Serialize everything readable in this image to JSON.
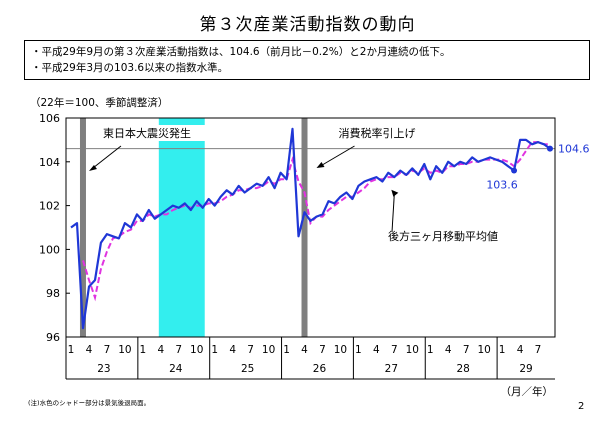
{
  "title": "第３次産業活動指数の動向",
  "notes": [
    "・平成29年9月の第３次産業活動指数は、104.6（前月比－0.2%）と2か月連続の低下。",
    "・平成29年3月の103.6以来の指数水準。"
  ],
  "unit_label": "（22年＝100、季節調整済）",
  "footnote": "(注)水色のシャドー部分は景気後退局面。",
  "page_number": "2",
  "chart_data": {
    "type": "line",
    "ylim": [
      96,
      106
    ],
    "yticks": [
      96,
      98,
      100,
      102,
      104,
      106
    ],
    "x_start": "2011-01",
    "month_tick_labels": [
      "1",
      "4",
      "7",
      "10"
    ],
    "year_labels": [
      "23",
      "24",
      "25",
      "26",
      "27",
      "28",
      "29"
    ],
    "x_unit_label": "（月／年）",
    "reference_line": 104.6,
    "colors": {
      "series": "#1f37d6",
      "moving_average": "#e033e0",
      "recession": "#33eeee",
      "event_bar": "#7f7f7f",
      "reference_line": "#808080"
    },
    "series": [
      {
        "name": "",
        "values": [
          101.0,
          101.2,
          96.4,
          98.3,
          98.6,
          100.3,
          100.7,
          100.6,
          100.5,
          101.2,
          101.0,
          101.6,
          101.3,
          101.8,
          101.4,
          101.6,
          101.8,
          102.0,
          101.9,
          102.1,
          101.8,
          102.2,
          101.9,
          102.3,
          102.0,
          102.4,
          102.7,
          102.5,
          102.9,
          102.6,
          102.8,
          103.0,
          102.9,
          103.3,
          102.8,
          103.5,
          103.2,
          105.5,
          100.6,
          101.7,
          101.3,
          101.5,
          101.6,
          102.2,
          102.1,
          102.4,
          102.6,
          102.3,
          102.9,
          103.1,
          103.2,
          103.3,
          103.1,
          103.5,
          103.3,
          103.6,
          103.4,
          103.7,
          103.4,
          103.9,
          103.2,
          103.8,
          103.5,
          104.0,
          103.8,
          104.0,
          103.9,
          104.2,
          104.0,
          104.1,
          104.2,
          104.1,
          104.0,
          103.8,
          103.6,
          105.0,
          105.0,
          104.8,
          104.9,
          104.8,
          104.6
        ]
      },
      {
        "name": "後方三ヶ月移動平均値",
        "values": [
          null,
          null,
          99.5,
          98.6,
          97.8,
          99.1,
          99.9,
          100.5,
          100.6,
          100.8,
          100.9,
          101.3,
          101.3,
          101.6,
          101.5,
          101.6,
          101.6,
          101.8,
          101.9,
          102.0,
          101.9,
          102.0,
          102.0,
          102.1,
          102.1,
          102.2,
          102.4,
          102.5,
          102.7,
          102.7,
          102.8,
          102.8,
          102.9,
          103.1,
          103.0,
          103.2,
          103.2,
          104.1,
          103.1,
          102.6,
          101.2,
          101.5,
          101.5,
          101.8,
          102.0,
          102.2,
          102.4,
          102.4,
          102.6,
          102.8,
          103.1,
          103.2,
          103.2,
          103.3,
          103.3,
          103.5,
          103.4,
          103.6,
          103.5,
          103.7,
          103.5,
          103.6,
          103.5,
          103.8,
          103.8,
          103.9,
          103.9,
          104.0,
          104.0,
          104.1,
          104.1,
          104.1,
          104.1,
          104.0,
          103.8,
          104.1,
          104.5,
          104.9,
          104.9,
          104.8,
          104.8
        ]
      }
    ],
    "annotations": [
      {
        "text": "東日本大震災発生",
        "event": "2011-03"
      },
      {
        "text": "消費税率引上げ",
        "event": "2014-04"
      },
      {
        "text": "後方三ヶ月移動平均値"
      },
      {
        "text": "104.6",
        "value": 104.6
      },
      {
        "text": "103.6",
        "value": 103.6
      }
    ],
    "recession_shading": {
      "start": "2012-04",
      "end": "2012-11"
    }
  }
}
